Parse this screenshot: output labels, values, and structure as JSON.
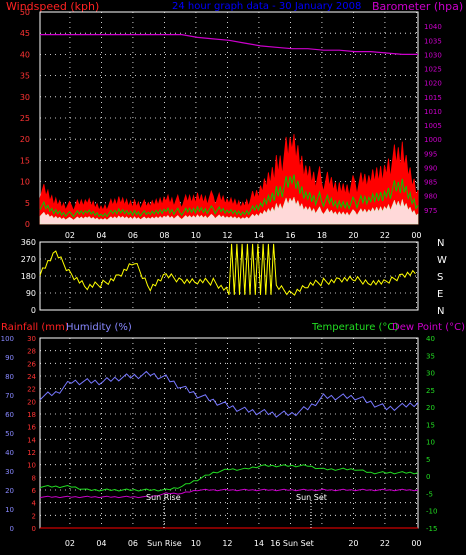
{
  "header": {
    "windspeed_label": "Windspeed (kph)",
    "title": "24 hour graph data - 30 January 2008",
    "barometer_label": "Barometer (hpa)"
  },
  "bottom_header": {
    "rainfall_label": "Rainfall (mm)",
    "humidity_label": "Humidity (%)",
    "temperature_label": "Temperature (°C)",
    "dewpoint_label": "Dew Point (°C)"
  },
  "x_ticks": [
    "02",
    "04",
    "06",
    "08",
    "10",
    "12",
    "14",
    "16",
    "18",
    "20",
    "22",
    "00"
  ],
  "bottom_x_ticks": [
    "02",
    "04",
    "06",
    "Sun Rise",
    "10",
    "12",
    "14",
    "16 Sun Set",
    "20",
    "22",
    "00"
  ],
  "compass": [
    "N",
    "W",
    "S",
    "E",
    "N"
  ],
  "annotations": {
    "sunrise": "Sun Rise",
    "sunset": "Sun Set"
  },
  "colors": {
    "wind": "#ff0000",
    "wind_avg": "#00cc00",
    "wind_low": "#ffffff",
    "barometer": "#cc00cc",
    "direction": "#ffff00",
    "humidity": "#7777ff",
    "temperature": "#22dd22",
    "dewpoint": "#cc00cc",
    "rainfall": "#ff0000"
  },
  "chart_data": [
    {
      "type": "line",
      "title": "24 hour graph data - 30 January 2008",
      "ylabel": "Windspeed (kph)",
      "ylim": [
        0,
        50
      ],
      "y_ticks": [
        0,
        5,
        10,
        15,
        20,
        25,
        30,
        35,
        40,
        45,
        50
      ],
      "y2label": "Barometer (hpa)",
      "y2lim": [
        970,
        1045
      ],
      "y2_ticks": [
        975,
        980,
        985,
        990,
        995,
        1000,
        1005,
        1010,
        1015,
        1020,
        1025,
        1030,
        1035,
        1040
      ],
      "x": [
        0,
        1,
        2,
        3,
        4,
        5,
        6,
        7,
        8,
        9,
        10,
        11,
        12,
        13,
        14,
        15,
        16,
        17,
        18,
        19,
        20,
        21,
        22,
        23,
        24
      ],
      "series": [
        {
          "name": "Windspeed (kph)",
          "values": [
            8,
            5,
            4,
            5,
            4,
            5,
            5,
            4,
            6,
            5,
            6,
            6,
            5,
            5,
            7,
            14,
            17,
            12,
            10,
            8,
            9,
            10,
            14,
            15,
            8
          ]
        },
        {
          "name": "Barometer (hpa)",
          "values": [
            1037,
            1037,
            1037,
            1037,
            1037,
            1037,
            1037,
            1037,
            1037,
            1037,
            1036,
            1035.5,
            1035,
            1034,
            1033,
            1032.5,
            1032,
            1032,
            1031.5,
            1031.5,
            1031,
            1031,
            1030.5,
            1030,
            1030
          ]
        }
      ]
    },
    {
      "type": "line",
      "ylabel": "Wind direction",
      "ylim": [
        0,
        360
      ],
      "y_ticks": [
        0,
        90,
        180,
        270,
        360
      ],
      "x": [
        0,
        1,
        2,
        3,
        4,
        5,
        6,
        7,
        8,
        9,
        10,
        11,
        12,
        13,
        14,
        15,
        16,
        17,
        18,
        19,
        20,
        21,
        22,
        23,
        24
      ],
      "series": [
        {
          "name": "Wind direction",
          "values": [
            200,
            300,
            190,
            120,
            140,
            180,
            250,
            120,
            180,
            160,
            150,
            150,
            100,
            200,
            160,
            120,
            90,
            130,
            150,
            160,
            160,
            150,
            140,
            190,
            200
          ]
        }
      ]
    },
    {
      "type": "line",
      "ylabel": "Humidity (%)",
      "ylim": [
        0,
        100
      ],
      "y_ticks": [
        0,
        10,
        20,
        30,
        40,
        50,
        60,
        70,
        80,
        90,
        100
      ],
      "y_rain_ticks": [
        0,
        2,
        4,
        6,
        8,
        10,
        12,
        14,
        16,
        18,
        20,
        22,
        24,
        26,
        28,
        30
      ],
      "y2label": "Temperature (°C)",
      "y2lim": [
        -15,
        40
      ],
      "y2_ticks": [
        -15,
        -10,
        -5,
        0,
        5,
        10,
        15,
        20,
        25,
        30,
        35,
        40
      ],
      "x": [
        0,
        1,
        2,
        3,
        4,
        5,
        6,
        7,
        8,
        9,
        10,
        11,
        12,
        13,
        14,
        15,
        16,
        17,
        18,
        19,
        20,
        21,
        22,
        23,
        24
      ],
      "series": [
        {
          "name": "Humidity (%)",
          "values": [
            69,
            71,
            77,
            77,
            77,
            79,
            80,
            81,
            79,
            74,
            70,
            67,
            64,
            62,
            61,
            60,
            60,
            63,
            69,
            69,
            69,
            66,
            63,
            64,
            66
          ]
        },
        {
          "name": "Temperature (°C)",
          "values": [
            -3,
            -3,
            -3,
            -4,
            -4,
            -4,
            -4,
            -4,
            -4,
            -3,
            -1,
            1,
            2,
            2,
            3,
            3,
            3,
            3,
            2,
            2,
            2,
            1,
            1,
            1,
            1
          ]
        },
        {
          "name": "Dew Point (°C)",
          "values": [
            -6,
            -6,
            -6,
            -6,
            -6,
            -6,
            -6,
            -6,
            -5,
            -5,
            -4,
            -4,
            -4,
            -4,
            -4,
            -4,
            -4,
            -4,
            -4,
            -4,
            -4,
            -4,
            -4,
            -4,
            -4
          ]
        },
        {
          "name": "Rainfall (mm)",
          "values": [
            0,
            0,
            0,
            0,
            0,
            0,
            0,
            0,
            0,
            0,
            0,
            0,
            0,
            0,
            0,
            0,
            0,
            0,
            0,
            0,
            0,
            0,
            0,
            0,
            0
          ]
        }
      ]
    }
  ]
}
